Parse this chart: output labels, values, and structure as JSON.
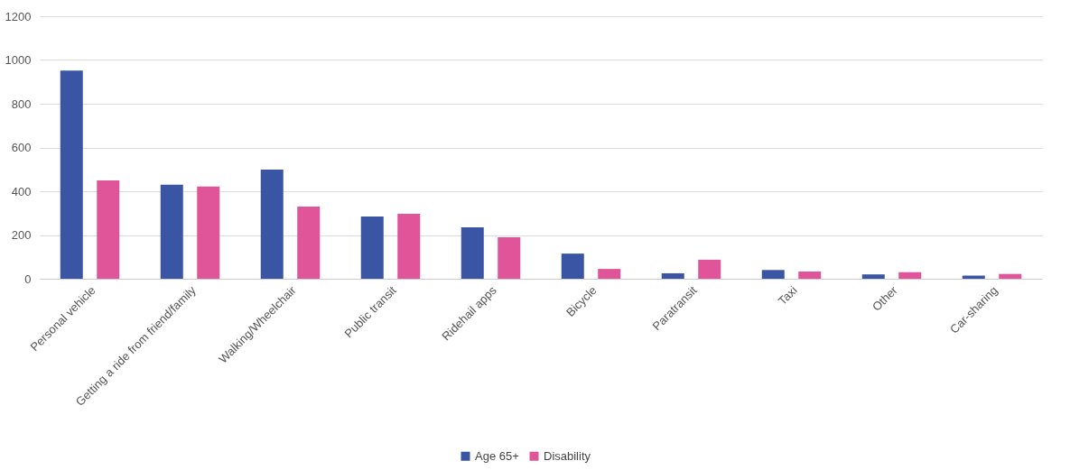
{
  "chart_data": {
    "type": "bar",
    "categories": [
      "Personal vehicle",
      "Getting a ride from friend/family",
      "Walking/Wheelchair",
      "Public transit",
      "Ridehail apps",
      "Bicycle",
      "Paratransit",
      "Taxi",
      "Other",
      "Car-sharing"
    ],
    "series": [
      {
        "name": "Age 65+",
        "color": "#3a55a4",
        "values": [
          952,
          430,
          499,
          285,
          235,
          115,
          25,
          40,
          20,
          14
        ]
      },
      {
        "name": "Disability",
        "color": "#e0559a",
        "values": [
          450,
          422,
          330,
          297,
          190,
          45,
          87,
          33,
          30,
          22
        ]
      }
    ],
    "ylim": [
      0,
      1200
    ],
    "yticks": [
      0,
      200,
      400,
      600,
      800,
      1000,
      1200
    ],
    "grid": "y",
    "legend": "bottom"
  }
}
